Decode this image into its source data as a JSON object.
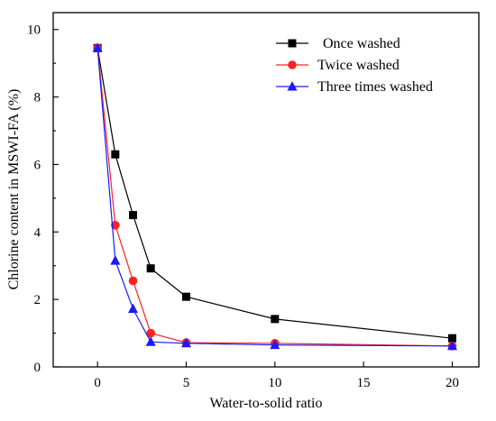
{
  "chart_data": {
    "type": "line",
    "xlabel": "Water-to-solid ratio",
    "ylabel": "Chlorine content in MSWI-FA (%)",
    "x": [
      0,
      1,
      2,
      3,
      5,
      10,
      20
    ],
    "xlim": [
      -2.5,
      21.5
    ],
    "ylim": [
      0,
      10.5
    ],
    "xticks": [
      "0",
      "5",
      "10",
      "15",
      "20"
    ],
    "yticks": [
      "0",
      "2",
      "4",
      "6",
      "8",
      "10"
    ],
    "grid": false,
    "legend_position": "top-right",
    "series": [
      {
        "name": "Once washed",
        "color": "#000000",
        "marker": "square",
        "values": [
          9.45,
          6.3,
          4.5,
          2.92,
          2.08,
          1.42,
          0.85
        ]
      },
      {
        "name": "Twice washed",
        "color": "#ff2020",
        "marker": "circle",
        "values": [
          9.45,
          4.2,
          2.55,
          1.0,
          0.72,
          0.7,
          0.62
        ]
      },
      {
        "name": "Three times washed",
        "color": "#1a1aff",
        "marker": "triangle",
        "values": [
          9.45,
          3.15,
          1.72,
          0.74,
          0.7,
          0.65,
          0.62
        ]
      }
    ]
  }
}
